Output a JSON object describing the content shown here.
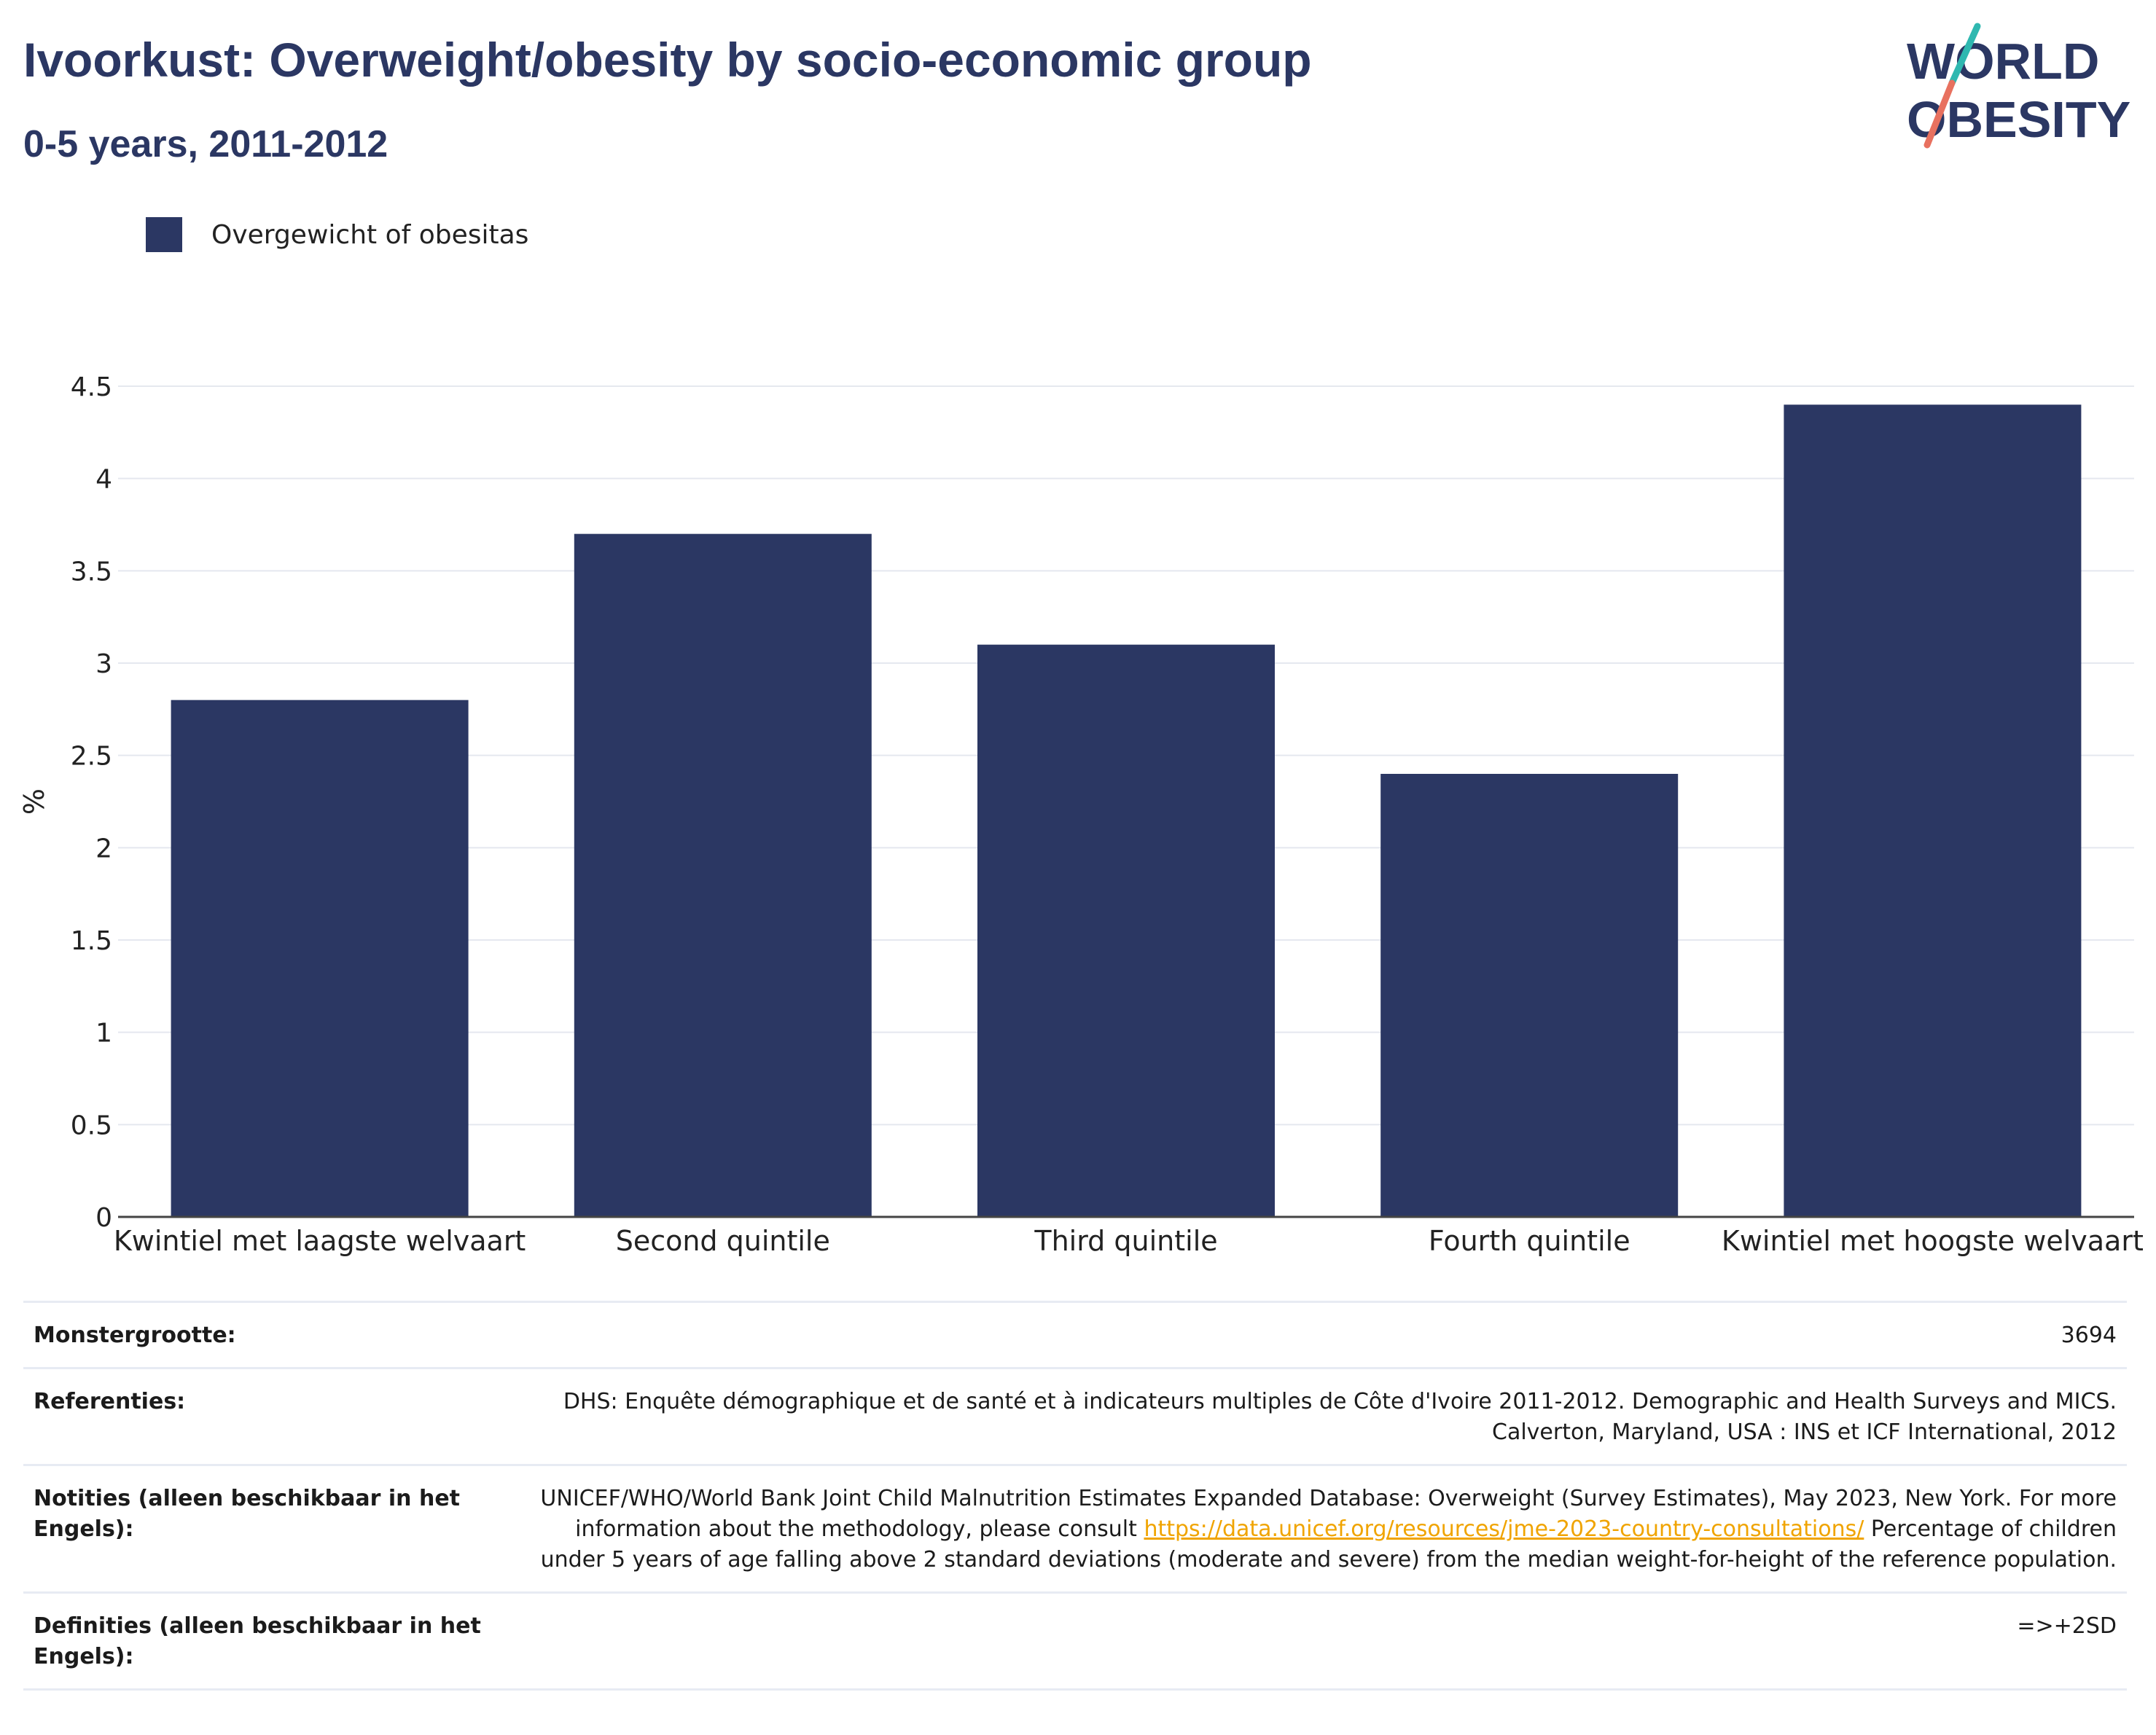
{
  "header": {
    "title": "Ivoorkust: Overweight/obesity by socio-economic group",
    "subtitle": "0-5 years, 2011-2012"
  },
  "logo": {
    "line1": "WORLD",
    "line2": "OBESITY"
  },
  "colors": {
    "bar": "#2b3763",
    "title": "#2b3763",
    "link": "#f0a400",
    "grid": "#e5e8ef"
  },
  "chart_data": {
    "type": "bar",
    "categories": [
      "Kwintiel met laagste welvaart",
      "Second quintile",
      "Third quintile",
      "Fourth quintile",
      "Kwintiel met hoogste welvaart"
    ],
    "series": [
      {
        "name": "Overgewicht of obesitas",
        "values": [
          2.8,
          3.7,
          3.1,
          2.4,
          4.4
        ]
      }
    ],
    "ylabel": "%",
    "xlabel": "",
    "ylim": [
      0,
      4.5
    ],
    "yticks": [
      0,
      0.5,
      1,
      1.5,
      2,
      2.5,
      3,
      3.5,
      4,
      4.5
    ],
    "ytick_labels": [
      "0",
      "0.5",
      "1",
      "1.5",
      "2",
      "2.5",
      "3",
      "3.5",
      "4",
      "4.5"
    ],
    "grid": true,
    "legend_position": "top-left"
  },
  "info": {
    "sample_size": {
      "label": "Monstergrootte:",
      "value": "3694"
    },
    "references": {
      "label": "Referenties:",
      "value": "DHS: Enquête démographique et de santé et à indicateurs multiples de Côte d'Ivoire 2011-2012. Demographic and Health Surveys and MICS. Calverton, Maryland, USA : INS et ICF International, 2012"
    },
    "notes": {
      "label": "Notities (alleen beschikbaar in het Engels):",
      "text_before": "UNICEF/WHO/World Bank Joint Child Malnutrition Estimates Expanded Database: Overweight (Survey Estimates), May 2023, New York. For more information about the methodology, please consult ",
      "link": "https://data.unicef.org/resources/jme-2023-country-consultations/",
      "text_after": " Percentage of children under 5 years of age falling above 2 standard deviations (moderate and severe) from the median weight-for-height of the reference population."
    },
    "definitions": {
      "label": "Definities (alleen beschikbaar in het Engels):",
      "value": "=>+2SD"
    }
  }
}
